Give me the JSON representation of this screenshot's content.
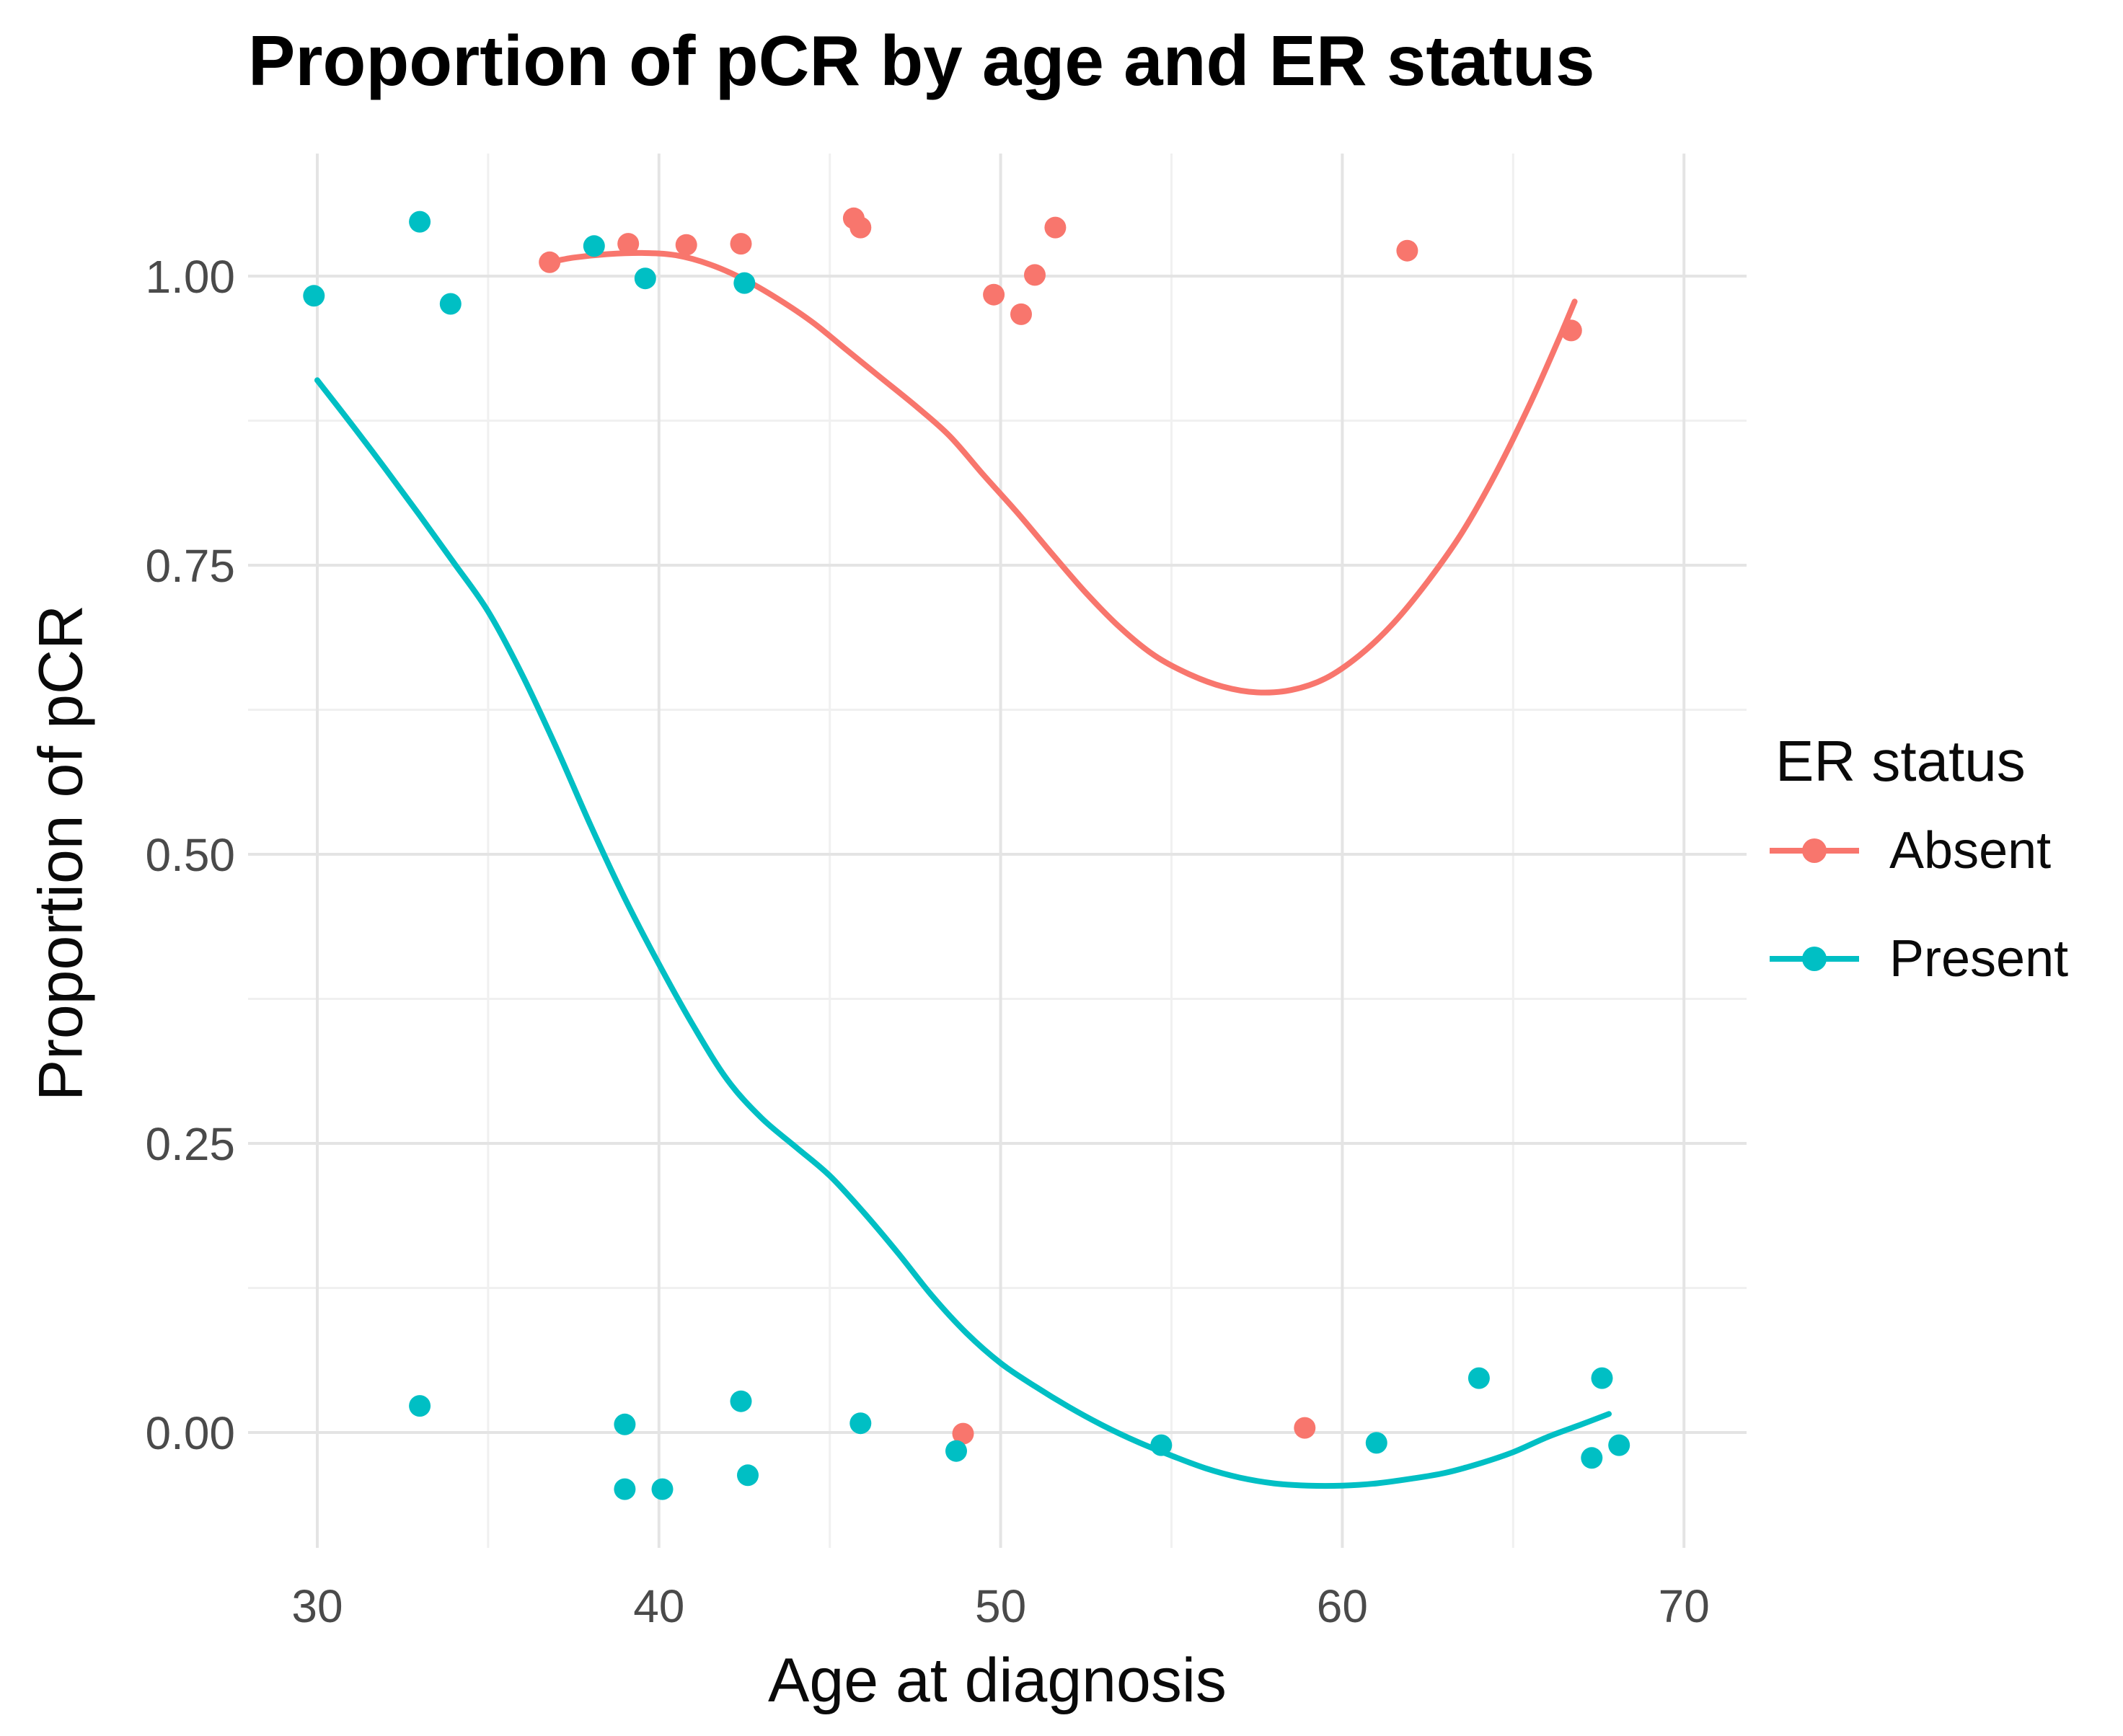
{
  "title": "Proportion of pCR by age and ER status",
  "x_axis": {
    "label": "Age at diagnosis",
    "tick_labels": [
      "30",
      "40",
      "50",
      "60",
      "70"
    ]
  },
  "y_axis": {
    "label": "Proportion of pCR",
    "tick_labels": [
      "0.00",
      "0.25",
      "0.50",
      "0.75",
      "1.00"
    ]
  },
  "legend": {
    "title": "ER status",
    "items": [
      {
        "label": "Absent"
      },
      {
        "label": "Present"
      }
    ]
  },
  "chart_data": {
    "type": "scatter",
    "title": "Proportion of pCR by age and ER status",
    "xlabel": "Age at diagnosis",
    "ylabel": "Proportion of pCR",
    "xlim": [
      28,
      71.7
    ],
    "ylim": [
      -0.098,
      1.105
    ],
    "x_ticks": [
      30,
      40,
      50,
      60,
      70
    ],
    "x_minor_ticks": [
      35,
      45,
      55,
      65
    ],
    "y_ticks": [
      0,
      0.25,
      0.5,
      0.75,
      1
    ],
    "y_minor_ticks": [
      0.125,
      0.375,
      0.625,
      0.875
    ],
    "grid": true,
    "legend_position": "right",
    "series": [
      {
        "name": "Absent",
        "color": "#F8766D",
        "points": [
          [
            36.8,
            1.012
          ],
          [
            39.1,
            1.028
          ],
          [
            40.8,
            1.027
          ],
          [
            42.4,
            1.028
          ],
          [
            45.7,
            1.05
          ],
          [
            45.9,
            1.042
          ],
          [
            48.9,
            -0.001
          ],
          [
            49.8,
            0.984
          ],
          [
            50.6,
            0.967
          ],
          [
            51.0,
            1.001
          ],
          [
            51.6,
            1.042
          ],
          [
            58.9,
            0.004
          ],
          [
            61.9,
            1.022
          ],
          [
            66.7,
            0.953
          ]
        ],
        "smooth": [
          [
            36.8,
            1.012
          ],
          [
            37.5,
            1.016
          ],
          [
            38.5,
            1.019
          ],
          [
            39.5,
            1.02
          ],
          [
            40.5,
            1.018
          ],
          [
            41.5,
            1.01
          ],
          [
            42.5,
            0.997
          ],
          [
            43.5,
            0.98
          ],
          [
            44.5,
            0.96
          ],
          [
            45.5,
            0.936
          ],
          [
            46.5,
            0.912
          ],
          [
            47.5,
            0.888
          ],
          [
            48.5,
            0.862
          ],
          [
            49.5,
            0.828
          ],
          [
            50.5,
            0.795
          ],
          [
            51.5,
            0.76
          ],
          [
            52.5,
            0.726
          ],
          [
            53.5,
            0.696
          ],
          [
            54.5,
            0.672
          ],
          [
            55.5,
            0.656
          ],
          [
            56.5,
            0.645
          ],
          [
            57.5,
            0.64
          ],
          [
            58.5,
            0.642
          ],
          [
            59.5,
            0.652
          ],
          [
            60.5,
            0.672
          ],
          [
            61.5,
            0.7
          ],
          [
            62.5,
            0.736
          ],
          [
            63.5,
            0.778
          ],
          [
            64.5,
            0.83
          ],
          [
            65.5,
            0.89
          ],
          [
            66.3,
            0.943
          ],
          [
            66.8,
            0.978
          ]
        ]
      },
      {
        "name": "Present",
        "color": "#00BFC4",
        "points": [
          [
            29.9,
            0.983
          ],
          [
            33.0,
            1.047
          ],
          [
            33.0,
            0.023
          ],
          [
            33.9,
            0.976
          ],
          [
            38.1,
            1.026
          ],
          [
            39.0,
            0.007
          ],
          [
            39.0,
            -0.049
          ],
          [
            39.6,
            0.998
          ],
          [
            40.1,
            -0.049
          ],
          [
            42.4,
            0.027
          ],
          [
            42.5,
            0.994
          ],
          [
            42.6,
            -0.037
          ],
          [
            45.9,
            0.008
          ],
          [
            48.7,
            -0.016
          ],
          [
            54.7,
            -0.011
          ],
          [
            61.0,
            -0.009
          ],
          [
            64.0,
            0.047
          ],
          [
            67.3,
            -0.022
          ],
          [
            67.6,
            0.047
          ],
          [
            68.1,
            -0.011
          ]
        ],
        "smooth": [
          [
            30,
            0.91
          ],
          [
            31,
            0.872
          ],
          [
            32,
            0.833
          ],
          [
            33,
            0.793
          ],
          [
            34,
            0.752
          ],
          [
            35,
            0.71
          ],
          [
            36,
            0.655
          ],
          [
            37,
            0.592
          ],
          [
            38,
            0.525
          ],
          [
            39,
            0.462
          ],
          [
            40,
            0.405
          ],
          [
            41,
            0.352
          ],
          [
            42,
            0.305
          ],
          [
            43,
            0.272
          ],
          [
            44,
            0.247
          ],
          [
            45,
            0.222
          ],
          [
            46,
            0.19
          ],
          [
            47,
            0.155
          ],
          [
            48,
            0.118
          ],
          [
            49,
            0.086
          ],
          [
            50,
            0.06
          ],
          [
            51,
            0.04
          ],
          [
            52,
            0.022
          ],
          [
            53,
            0.006
          ],
          [
            54,
            -0.008
          ],
          [
            55,
            -0.02
          ],
          [
            56,
            -0.031
          ],
          [
            57,
            -0.039
          ],
          [
            58,
            -0.044
          ],
          [
            59,
            -0.046
          ],
          [
            60,
            -0.046
          ],
          [
            61,
            -0.044
          ],
          [
            62,
            -0.04
          ],
          [
            63,
            -0.035
          ],
          [
            64,
            -0.027
          ],
          [
            65,
            -0.017
          ],
          [
            66,
            -0.004
          ],
          [
            67,
            0.007
          ],
          [
            67.8,
            0.016
          ]
        ]
      }
    ]
  }
}
